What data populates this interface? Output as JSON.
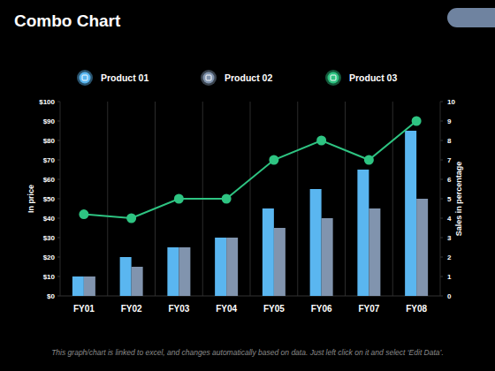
{
  "chart_data": {
    "type": "bar",
    "title": "Combo Chart",
    "y_label": "In price",
    "y2_label": "Sales in percentage",
    "footnote": "This graph/chart is linked to excel, and changes automatically based on data. Just left click on it and select ‘Edit Data’.",
    "categories": [
      "FY01",
      "FY02",
      "FY03",
      "FY04",
      "FY05",
      "FY06",
      "FY07",
      "FY08"
    ],
    "series": [
      {
        "name": "Product 01",
        "type": "bar",
        "color": "#5ab6f0",
        "values": [
          10,
          20,
          25,
          30,
          45,
          55,
          65,
          85
        ]
      },
      {
        "name": "Product 02",
        "type": "bar",
        "color": "#8194ae",
        "values": [
          10,
          15,
          25,
          30,
          35,
          40,
          45,
          50
        ]
      },
      {
        "name": "Product 03",
        "type": "line",
        "color": "#2ec482",
        "marker": "circle",
        "axis": "y2",
        "values": [
          4.2,
          4,
          5,
          5,
          7,
          8,
          7,
          9
        ]
      }
    ],
    "ylim": [
      0,
      100
    ],
    "yticks": [
      {
        "value": 0,
        "label": "$0"
      },
      {
        "value": 10,
        "label": "$10"
      },
      {
        "value": 20,
        "label": "$20"
      },
      {
        "value": 30,
        "label": "$30"
      },
      {
        "value": 40,
        "label": "$40"
      },
      {
        "value": 50,
        "label": "$50"
      },
      {
        "value": 60,
        "label": "$60"
      },
      {
        "value": 70,
        "label": "$70"
      },
      {
        "value": 80,
        "label": "$80"
      },
      {
        "value": 90,
        "label": "$90"
      },
      {
        "value": 100,
        "label": "$100"
      }
    ],
    "y2lim": [
      0,
      10
    ],
    "y2ticks": [
      0,
      1,
      2,
      3,
      4,
      5,
      6,
      7,
      8,
      9,
      10
    ],
    "grid": true,
    "legend": "top"
  }
}
